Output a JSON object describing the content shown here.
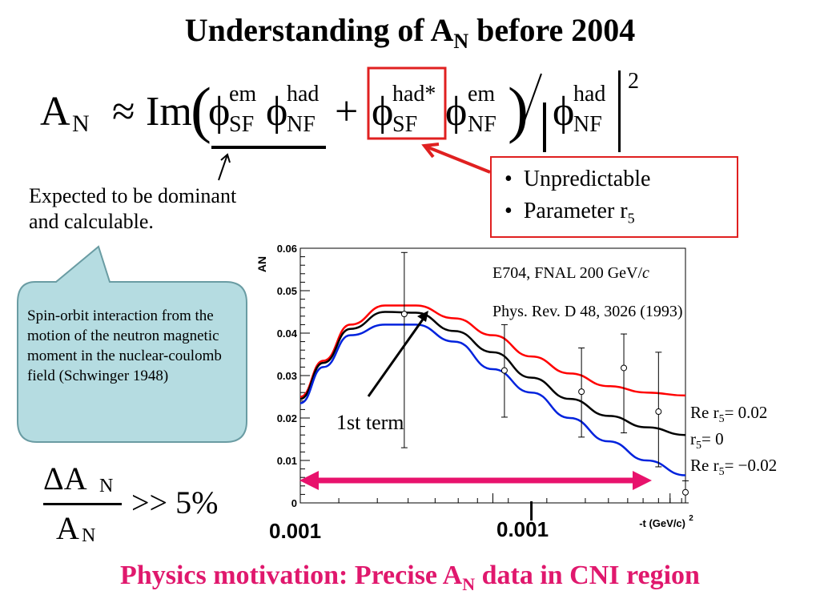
{
  "slide": {
    "title_main": "Understanding of A",
    "title_sub": "N",
    "title_tail": " before 2004",
    "formula": {
      "lhs": "A",
      "lhs_sub": "N",
      "approx": "≈",
      "im": "Im",
      "phi": "ϕ",
      "em": "em",
      "had": "had",
      "had_star": "had*",
      "sf": "SF",
      "nf": "NF",
      "plus": "+",
      "power": "2"
    },
    "dominant_note": [
      "Expected to be dominant",
      "and calculable."
    ],
    "bubble_text": "Spin-orbit interaction from the motion of the neutron magnetic moment in the nuclear-coulomb field (Schwinger 1948)",
    "bullets": [
      "Unpredictable",
      "Parameter r"
    ],
    "bullet_sub": "5",
    "ratio": {
      "num": "ΔA",
      "den": "A",
      "sub": "N",
      "rhs": ">> 5%"
    },
    "bottom_text_main": "Physics motivation: Precise A",
    "bottom_text_sub": "N",
    "bottom_text_tail": " data in CNI region",
    "colors": {
      "title": "#000000",
      "bottom": "#e0186d",
      "bubble": "#b5dce1",
      "red_box": "#e02020",
      "arrow_pink": "#e8126c"
    }
  },
  "chart_data": {
    "type": "line",
    "ylabel": "A",
    "ylabel_sub": "N",
    "xlabel": "-t (GeV/c)",
    "xlabel_sup": "2",
    "yticks": [
      "0",
      "0.01",
      "0.02",
      "0.03",
      "0.04",
      "0.05",
      "0.06"
    ],
    "ylim": [
      0,
      0.06
    ],
    "annotation_source": "E704, FNAL 200 GeV/",
    "annotation_source_c": "c",
    "annotation_ref": "Phys. Rev. D 48, 3026 (1993)",
    "arrow_label": "1st term",
    "xrange_labels": [
      "0.001",
      "0.001"
    ],
    "series": [
      {
        "name": "Re r5= 0.02",
        "color": "#ff0000",
        "points": [
          [
            0,
            0.025
          ],
          [
            0.06,
            0.0335
          ],
          [
            0.13,
            0.042
          ],
          [
            0.22,
            0.0465
          ],
          [
            0.3,
            0.0465
          ],
          [
            0.4,
            0.0435
          ],
          [
            0.5,
            0.0395
          ],
          [
            0.6,
            0.0345
          ],
          [
            0.7,
            0.0305
          ],
          [
            0.8,
            0.0275
          ],
          [
            0.9,
            0.026
          ],
          [
            1.0,
            0.0253
          ]
        ]
      },
      {
        "name": "r5= 0",
        "color": "#000000",
        "points": [
          [
            0,
            0.0245
          ],
          [
            0.06,
            0.033
          ],
          [
            0.13,
            0.041
          ],
          [
            0.22,
            0.045
          ],
          [
            0.3,
            0.0448
          ],
          [
            0.4,
            0.0405
          ],
          [
            0.5,
            0.0355
          ],
          [
            0.6,
            0.0295
          ],
          [
            0.7,
            0.0245
          ],
          [
            0.8,
            0.0205
          ],
          [
            0.9,
            0.0178
          ],
          [
            1.0,
            0.016
          ]
        ]
      },
      {
        "name": "Re r5= −0.02",
        "color": "#0022dd",
        "points": [
          [
            0,
            0.0235
          ],
          [
            0.06,
            0.032
          ],
          [
            0.13,
            0.0395
          ],
          [
            0.22,
            0.042
          ],
          [
            0.3,
            0.042
          ],
          [
            0.4,
            0.038
          ],
          [
            0.5,
            0.0315
          ],
          [
            0.6,
            0.026
          ],
          [
            0.7,
            0.02
          ],
          [
            0.8,
            0.0145
          ],
          [
            0.9,
            0.01
          ],
          [
            1.0,
            0.0065
          ]
        ]
      }
    ],
    "data_points": [
      {
        "x": 0.27,
        "y": 0.0445,
        "lo": 0.013,
        "hi": 0.059
      },
      {
        "x": 0.53,
        "y": 0.0312,
        "lo": 0.0202,
        "hi": 0.042
      },
      {
        "x": 0.73,
        "y": 0.0262,
        "lo": 0.0155,
        "hi": 0.0365
      },
      {
        "x": 0.84,
        "y": 0.0318,
        "lo": 0.0165,
        "hi": 0.0398
      },
      {
        "x": 0.93,
        "y": 0.0215,
        "lo": 0.0085,
        "hi": 0.0355
      },
      {
        "x": 1.0,
        "y": 0.0025,
        "lo": 0.0,
        "hi": 0.0052
      }
    ]
  }
}
